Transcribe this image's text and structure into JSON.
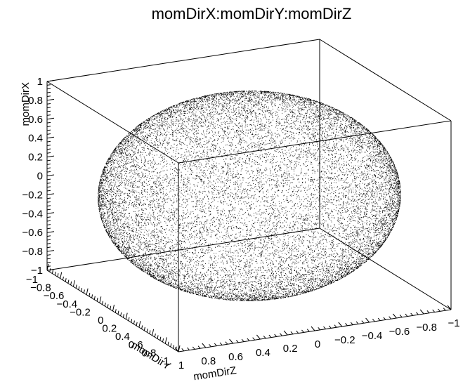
{
  "chart_data": {
    "type": "scatter",
    "title": "momDirX:momDirY:momDirZ",
    "description_points": "unit sphere surface x^2+y^2+z^2=1, uniformly sampled momentum directions",
    "xlabel": "momDirZ",
    "ylabel": "momDirY",
    "zlabel": "momDirX",
    "x_axis_ticks": [
      "1",
      "0.8",
      "0.6",
      "0.4",
      "0.2",
      "0",
      "−0.2",
      "−0.4",
      "−0.6",
      "−0.8",
      "−1"
    ],
    "y_axis_ticks": [
      "−1",
      "−0.8",
      "−0.6",
      "−0.4",
      "−0.2",
      "0",
      "0.2",
      "0.4",
      "0.6",
      "0.8",
      "1"
    ],
    "z_axis_ticks": [
      "1",
      "0.8",
      "0.6",
      "0.4",
      "0.2",
      "0",
      "−0.2",
      "−0.4",
      "−0.6",
      "−0.8",
      "−1"
    ],
    "xlim": [
      -1,
      1
    ],
    "ylim": [
      -1,
      1
    ],
    "zlim": [
      -1,
      1
    ],
    "marker_color": "#000000",
    "grid": false
  }
}
